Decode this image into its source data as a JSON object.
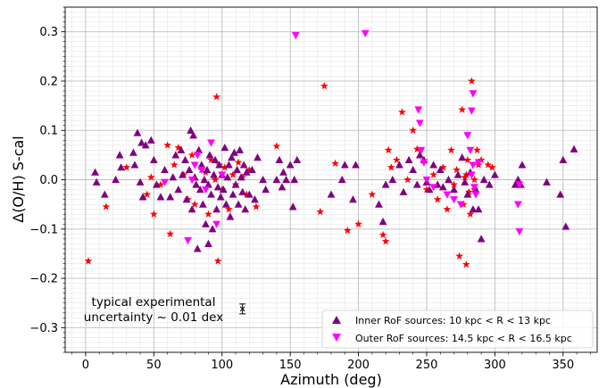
{
  "chart_data": {
    "type": "scatter",
    "xlabel": "Azimuth (deg)",
    "ylabel": "Δ(O/H) S-cal",
    "xlim": [
      -15,
      375
    ],
    "ylim": [
      -0.35,
      0.35
    ],
    "x_ticks": [
      0,
      50,
      100,
      150,
      200,
      250,
      300,
      350
    ],
    "y_ticks": [
      -0.3,
      -0.2,
      -0.1,
      0.0,
      0.1,
      0.2,
      0.3
    ],
    "y_tick_labels": [
      "−0.3",
      "−0.2",
      "−0.1",
      "0.0",
      "0.1",
      "0.2",
      "0.3"
    ],
    "grid": "major and minor",
    "legend_position": "lower-right",
    "colors": {
      "inner": "#800080",
      "outer": "#ff00ff",
      "other": "#ff0000",
      "errorbar": "#000000"
    },
    "annotation": {
      "line1": "typical experimental",
      "line2": "uncertainty ~ 0.01 dex",
      "errorbar_x": 115,
      "errorbar_y": -0.262,
      "errorbar_half": 0.01
    },
    "series": [
      {
        "name": "Inner RoF sources: 10 kpc < R < 13 kpc",
        "marker": "triangle-up",
        "points": [
          [
            7,
            0.015
          ],
          [
            8,
            -0.005
          ],
          [
            14,
            -0.03
          ],
          [
            22,
            0.0
          ],
          [
            25,
            0.05
          ],
          [
            26,
            0.025
          ],
          [
            35,
            0.055
          ],
          [
            36,
            0.03
          ],
          [
            38,
            0.095
          ],
          [
            40,
            -0.005
          ],
          [
            41,
            0.075
          ],
          [
            42,
            -0.035
          ],
          [
            44,
            0.07
          ],
          [
            48,
            0.08
          ],
          [
            50,
            0.04
          ],
          [
            52,
            -0.01
          ],
          [
            55,
            -0.035
          ],
          [
            58,
            0.02
          ],
          [
            62,
            -0.035
          ],
          [
            64,
            0.005
          ],
          [
            66,
            0.05
          ],
          [
            68,
            -0.02
          ],
          [
            70,
            0.06
          ],
          [
            71,
            0.01
          ],
          [
            73,
            0.04
          ],
          [
            74,
            -0.04
          ],
          [
            76,
            0.02
          ],
          [
            77,
            0.1
          ],
          [
            78,
            -0.06
          ],
          [
            79,
            0.09
          ],
          [
            80,
            0.005
          ],
          [
            81,
            -0.01
          ],
          [
            82,
            -0.14
          ],
          [
            83,
            0.06
          ],
          [
            84,
            -0.02
          ],
          [
            85,
            0.03
          ],
          [
            86,
            -0.05
          ],
          [
            87,
            0.0
          ],
          [
            88,
            -0.09
          ],
          [
            89,
            0.02
          ],
          [
            90,
            -0.13
          ],
          [
            90,
            -0.01
          ],
          [
            91,
            0.05
          ],
          [
            92,
            -0.03
          ],
          [
            93,
            -0.1
          ],
          [
            94,
            0.01
          ],
          [
            95,
            0.04
          ],
          [
            96,
            -0.06
          ],
          [
            97,
            -0.015
          ],
          [
            98,
            0.03
          ],
          [
            99,
            -0.035
          ],
          [
            100,
            0.01
          ],
          [
            101,
            -0.02
          ],
          [
            102,
            0.065
          ],
          [
            103,
            -0.05
          ],
          [
            104,
            0.005
          ],
          [
            105,
            0.03
          ],
          [
            106,
            -0.075
          ],
          [
            107,
            0.045
          ],
          [
            108,
            -0.03
          ],
          [
            109,
            0.055
          ],
          [
            110,
            -0.01
          ],
          [
            111,
            0.02
          ],
          [
            112,
            -0.05
          ],
          [
            113,
            0.06
          ],
          [
            114,
            0.005
          ],
          [
            115,
            -0.025
          ],
          [
            116,
            0.03
          ],
          [
            117,
            -0.06
          ],
          [
            118,
            0.015
          ],
          [
            120,
            -0.03
          ],
          [
            122,
            0.02
          ],
          [
            124,
            -0.04
          ],
          [
            126,
            0.045
          ],
          [
            130,
            0.0
          ],
          [
            132,
            -0.02
          ],
          [
            140,
            0.0
          ],
          [
            142,
            0.04
          ],
          [
            144,
            -0.015
          ],
          [
            145,
            0.015
          ],
          [
            147,
            0.0
          ],
          [
            150,
            0.03
          ],
          [
            152,
            -0.055
          ],
          [
            153,
            0.0
          ],
          [
            155,
            0.04
          ],
          [
            180,
            -0.03
          ],
          [
            188,
            0.0
          ],
          [
            190,
            0.03
          ],
          [
            196,
            -0.04
          ],
          [
            198,
            0.03
          ],
          [
            215,
            -0.05
          ],
          [
            218,
            -0.085
          ],
          [
            220,
            -0.01
          ],
          [
            225,
            0.0
          ],
          [
            230,
            0.03
          ],
          [
            233,
            -0.025
          ],
          [
            237,
            0.04
          ],
          [
            240,
            0.02
          ],
          [
            243,
            -0.01
          ],
          [
            245,
            0.05
          ],
          [
            248,
            0.04
          ],
          [
            250,
            -0.005
          ],
          [
            252,
            -0.02
          ],
          [
            255,
            0.03
          ],
          [
            258,
            -0.01
          ],
          [
            260,
            0.02
          ],
          [
            262,
            -0.015
          ],
          [
            266,
            0.0
          ],
          [
            270,
            -0.02
          ],
          [
            273,
            0.01
          ],
          [
            276,
            0.045
          ],
          [
            278,
            -0.005
          ],
          [
            280,
            -0.03
          ],
          [
            282,
            0.015
          ],
          [
            284,
            -0.06
          ],
          [
            286,
            -0.02
          ],
          [
            288,
            -0.06
          ],
          [
            290,
            -0.12
          ],
          [
            292,
            0.0
          ],
          [
            296,
            -0.01
          ],
          [
            300,
            0.01
          ],
          [
            315,
            -0.01
          ],
          [
            317,
            0.0
          ],
          [
            319,
            -0.01
          ],
          [
            320,
            0.03
          ],
          [
            338,
            -0.005
          ],
          [
            348,
            -0.03
          ],
          [
            350,
            0.04
          ],
          [
            352,
            -0.095
          ],
          [
            358,
            0.062
          ]
        ]
      },
      {
        "name": "Outer RoF sources: 14.5 kpc < R < 16.5 kpc",
        "marker": "triangle-down",
        "points": [
          [
            154,
            0.293
          ],
          [
            205,
            0.297
          ],
          [
            75,
            -0.123
          ],
          [
            78,
            0.0
          ],
          [
            80,
            0.03
          ],
          [
            82,
            0.05
          ],
          [
            85,
            0.02
          ],
          [
            88,
            -0.02
          ],
          [
            92,
            0.075
          ],
          [
            96,
            -0.09
          ],
          [
            100,
            0.01
          ],
          [
            58,
            -0.005
          ],
          [
            244,
            0.142
          ],
          [
            245,
            0.115
          ],
          [
            246,
            0.06
          ],
          [
            248,
            0.035
          ],
          [
            250,
            0.0
          ],
          [
            255,
            -0.015
          ],
          [
            265,
            -0.03
          ],
          [
            270,
            -0.04
          ],
          [
            275,
            -0.05
          ],
          [
            280,
            0.09
          ],
          [
            282,
            0.06
          ],
          [
            283,
            0.01
          ],
          [
            284,
            0.03
          ],
          [
            285,
            -0.015
          ],
          [
            286,
            -0.03
          ],
          [
            288,
            0.035
          ],
          [
            283,
            0.14
          ],
          [
            284,
            0.175
          ],
          [
            317,
            -0.05
          ],
          [
            318,
            -0.105
          ],
          [
            318,
            -0.01
          ]
        ]
      },
      {
        "name": "Other sources",
        "marker": "star",
        "points": [
          [
            2,
            -0.165
          ],
          [
            15,
            -0.055
          ],
          [
            30,
            0.025
          ],
          [
            45,
            -0.03
          ],
          [
            48,
            0.005
          ],
          [
            50,
            -0.07
          ],
          [
            55,
            -0.01
          ],
          [
            60,
            0.07
          ],
          [
            62,
            -0.11
          ],
          [
            65,
            0.03
          ],
          [
            68,
            0.065
          ],
          [
            72,
            0.01
          ],
          [
            75,
            -0.04
          ],
          [
            78,
            0.05
          ],
          [
            80,
            -0.05
          ],
          [
            85,
            0.02
          ],
          [
            88,
            0.015
          ],
          [
            90,
            -0.07
          ],
          [
            92,
            0.04
          ],
          [
            95,
            0.0
          ],
          [
            96,
            0.168
          ],
          [
            97,
            -0.165
          ],
          [
            98,
            0.03
          ],
          [
            100,
            -0.02
          ],
          [
            102,
            0.025
          ],
          [
            105,
            -0.06
          ],
          [
            108,
            0.01
          ],
          [
            110,
            -0.01
          ],
          [
            112,
            0.035
          ],
          [
            115,
            0.005
          ],
          [
            118,
            -0.03
          ],
          [
            120,
            0.02
          ],
          [
            125,
            -0.055
          ],
          [
            140,
            0.068
          ],
          [
            175,
            0.19
          ],
          [
            172,
            -0.065
          ],
          [
            183,
            0.033
          ],
          [
            192,
            -0.103
          ],
          [
            200,
            -0.09
          ],
          [
            210,
            -0.03
          ],
          [
            218,
            -0.112
          ],
          [
            220,
            -0.125
          ],
          [
            222,
            0.06
          ],
          [
            224,
            0.025
          ],
          [
            228,
            0.04
          ],
          [
            232,
            0.137
          ],
          [
            236,
            0.0
          ],
          [
            240,
            0.1
          ],
          [
            243,
            0.062
          ],
          [
            250,
            -0.02
          ],
          [
            255,
            0.01
          ],
          [
            258,
            -0.04
          ],
          [
            262,
            0.025
          ],
          [
            265,
            -0.06
          ],
          [
            268,
            0.06
          ],
          [
            270,
            -0.01
          ],
          [
            272,
            0.02
          ],
          [
            274,
            -0.155
          ],
          [
            276,
            0.142
          ],
          [
            278,
            0.005
          ],
          [
            279,
            -0.172
          ],
          [
            280,
            0.04
          ],
          [
            282,
            -0.07
          ],
          [
            283,
            0.2
          ],
          [
            285,
            -0.02
          ],
          [
            288,
            0.03
          ],
          [
            290,
            0.04
          ],
          [
            295,
            0.03
          ],
          [
            298,
            0.025
          ],
          [
            285,
            0.0
          ],
          [
            281,
            -0.025
          ],
          [
            279,
            0.01
          ],
          [
            277,
            -0.05
          ],
          [
            287,
            0.06
          ]
        ]
      }
    ]
  }
}
